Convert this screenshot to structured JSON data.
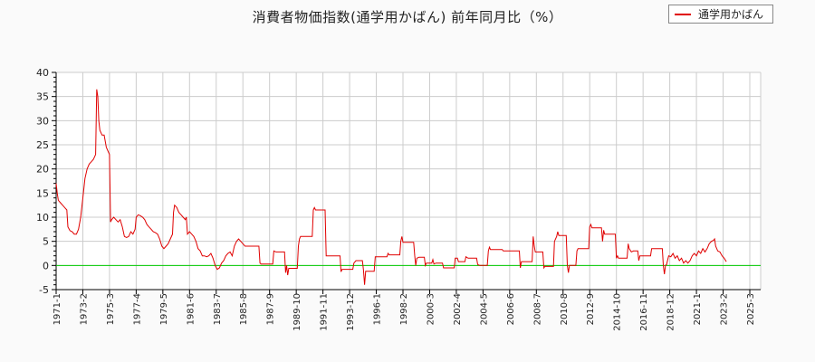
{
  "chart_data": {
    "type": "line",
    "title": "消費者物価指数(通学用かばん) 前年同月比（%）",
    "xlabel": "",
    "ylabel": "",
    "ylim": [
      -5,
      40
    ],
    "yticks": [
      -5,
      0,
      5,
      10,
      15,
      20,
      25,
      30,
      35,
      40
    ],
    "grid": true,
    "legend_position": "top-right",
    "x_tick_labels": [
      "1971-1",
      "1973-2",
      "1975-3",
      "1977-4",
      "1979-5",
      "1981-6",
      "1983-7",
      "1985-8",
      "1987-9",
      "1989-10",
      "1991-11",
      "1993-12",
      "1996-1",
      "1998-2",
      "2000-3",
      "2002-4",
      "2004-5",
      "2006-6",
      "2008-7",
      "2010-8",
      "2012-9",
      "2014-10",
      "2016-11",
      "2018-12",
      "2021-1",
      "2023-2",
      "2025-3"
    ],
    "x_tick_interval_months": 25,
    "x_start": "1971-1",
    "x_end_month_index": 654,
    "reference_line": {
      "y": 0,
      "color": "#00cc00"
    },
    "series": [
      {
        "name": "通学用かばん",
        "color": "#e00000",
        "points_month_index_value": [
          [
            0,
            17
          ],
          [
            1,
            15
          ],
          [
            2,
            13.5
          ],
          [
            4,
            13
          ],
          [
            6,
            12.5
          ],
          [
            8,
            12
          ],
          [
            10,
            11.5
          ],
          [
            11,
            8
          ],
          [
            13,
            7.2
          ],
          [
            15,
            7
          ],
          [
            17,
            6.5
          ],
          [
            19,
            6.5
          ],
          [
            21,
            7.5
          ],
          [
            23,
            10
          ],
          [
            25,
            14
          ],
          [
            27,
            18
          ],
          [
            29,
            20
          ],
          [
            31,
            21
          ],
          [
            33,
            21.5
          ],
          [
            35,
            22
          ],
          [
            37,
            23
          ],
          [
            38,
            36.5
          ],
          [
            39,
            35
          ],
          [
            40,
            30
          ],
          [
            41,
            28
          ],
          [
            43,
            27
          ],
          [
            45,
            27
          ],
          [
            47,
            24.5
          ],
          [
            49,
            23.5
          ],
          [
            50,
            23
          ],
          [
            51,
            9
          ],
          [
            52,
            9.5
          ],
          [
            54,
            10
          ],
          [
            56,
            9.5
          ],
          [
            58,
            9
          ],
          [
            60,
            9.5
          ],
          [
            62,
            8
          ],
          [
            64,
            6
          ],
          [
            66,
            5.8
          ],
          [
            68,
            6
          ],
          [
            70,
            7
          ],
          [
            72,
            6.5
          ],
          [
            74,
            7.5
          ],
          [
            75,
            10
          ],
          [
            77,
            10.5
          ],
          [
            79,
            10.3
          ],
          [
            81,
            10
          ],
          [
            83,
            9.5
          ],
          [
            85,
            8.5
          ],
          [
            87,
            8
          ],
          [
            89,
            7.5
          ],
          [
            91,
            7
          ],
          [
            93,
            6.8
          ],
          [
            95,
            6.5
          ],
          [
            97,
            5.5
          ],
          [
            99,
            4
          ],
          [
            101,
            3.5
          ],
          [
            103,
            4
          ],
          [
            105,
            4.5
          ],
          [
            107,
            5.5
          ],
          [
            109,
            6.5
          ],
          [
            110,
            11
          ],
          [
            111,
            12.5
          ],
          [
            113,
            12
          ],
          [
            115,
            11
          ],
          [
            117,
            10.5
          ],
          [
            119,
            10
          ],
          [
            121,
            9.5
          ],
          [
            122,
            10
          ],
          [
            123,
            6.5
          ],
          [
            125,
            7
          ],
          [
            127,
            6.5
          ],
          [
            129,
            6
          ],
          [
            131,
            5
          ],
          [
            133,
            3.5
          ],
          [
            135,
            3
          ],
          [
            137,
            2
          ],
          [
            139,
            2
          ],
          [
            141,
            1.8
          ],
          [
            143,
            2
          ],
          [
            145,
            2.5
          ],
          [
            147,
            1.5
          ],
          [
            149,
            0
          ],
          [
            151,
            -0.8
          ],
          [
            153,
            -0.5
          ],
          [
            155,
            0.5
          ],
          [
            157,
            1
          ],
          [
            159,
            2
          ],
          [
            161,
            2.5
          ],
          [
            163,
            2.8
          ],
          [
            165,
            2
          ],
          [
            167,
            4
          ],
          [
            169,
            5
          ],
          [
            171,
            5.5
          ],
          [
            173,
            5
          ],
          [
            175,
            4.5
          ],
          [
            177,
            4
          ],
          [
            190,
            4
          ],
          [
            191,
            0.5
          ],
          [
            192,
            0.3
          ],
          [
            203,
            0.3
          ],
          [
            204,
            3
          ],
          [
            206,
            2.8
          ],
          [
            214,
            2.8
          ],
          [
            215,
            -1.5
          ],
          [
            216,
            0
          ],
          [
            217,
            -2
          ],
          [
            218,
            -0.6
          ],
          [
            226,
            -0.6
          ],
          [
            227,
            4
          ],
          [
            228,
            5.5
          ],
          [
            229,
            6
          ],
          [
            240,
            6
          ],
          [
            241,
            11.5
          ],
          [
            242,
            12
          ],
          [
            243,
            11.5
          ],
          [
            252,
            11.5
          ],
          [
            253,
            2
          ],
          [
            266,
            2
          ],
          [
            267,
            -1.3
          ],
          [
            268,
            -0.8
          ],
          [
            278,
            -0.8
          ],
          [
            279,
            0.5
          ],
          [
            281,
            1
          ],
          [
            287,
            1
          ],
          [
            288,
            -1
          ],
          [
            289,
            -4
          ],
          [
            290,
            -1.2
          ],
          [
            298,
            -1.2
          ],
          [
            299,
            1.8
          ],
          [
            300,
            1.8
          ],
          [
            310,
            1.8
          ],
          [
            311,
            2.5
          ],
          [
            312,
            2.2
          ],
          [
            322,
            2.2
          ],
          [
            323,
            5
          ],
          [
            324,
            6
          ],
          [
            325,
            4.8
          ],
          [
            335,
            4.8
          ],
          [
            336,
            2
          ],
          [
            337,
            0
          ],
          [
            338,
            1.5
          ],
          [
            340,
            1.7
          ],
          [
            345,
            1.7
          ],
          [
            346,
            0
          ],
          [
            347,
            0.5
          ],
          [
            352,
            0.5
          ],
          [
            353,
            1.2
          ],
          [
            354,
            0.3
          ],
          [
            356,
            0.5
          ],
          [
            362,
            0.5
          ],
          [
            363,
            -0.5
          ],
          [
            373,
            -0.5
          ],
          [
            374,
            1.5
          ],
          [
            376,
            1.5
          ],
          [
            377,
            0.8
          ],
          [
            383,
            0.8
          ],
          [
            384,
            1.8
          ],
          [
            386,
            1.5
          ],
          [
            394,
            1.5
          ],
          [
            395,
            0.2
          ],
          [
            397,
            0
          ],
          [
            404,
            0
          ],
          [
            405,
            3
          ],
          [
            406,
            3.8
          ],
          [
            407,
            3.3
          ],
          [
            418,
            3.3
          ],
          [
            419,
            3
          ],
          [
            420,
            3
          ],
          [
            434,
            3
          ],
          [
            435,
            -0.5
          ],
          [
            436,
            0.8
          ],
          [
            446,
            0.8
          ],
          [
            447,
            6
          ],
          [
            448,
            4
          ],
          [
            449,
            2.8
          ],
          [
            456,
            2.8
          ],
          [
            457,
            -0.5
          ],
          [
            458,
            -0.2
          ],
          [
            466,
            -0.2
          ],
          [
            467,
            5
          ],
          [
            469,
            6
          ],
          [
            470,
            7
          ],
          [
            471,
            6.2
          ],
          [
            478,
            6.2
          ],
          [
            479,
            0
          ],
          [
            480,
            -1.5
          ],
          [
            481,
            0
          ],
          [
            487,
            0
          ],
          [
            488,
            3
          ],
          [
            489,
            3.5
          ],
          [
            499,
            3.5
          ],
          [
            500,
            8
          ],
          [
            501,
            8.5
          ],
          [
            502,
            7.8
          ],
          [
            511,
            7.8
          ],
          [
            512,
            5
          ],
          [
            513,
            7.3
          ],
          [
            514,
            6.5
          ],
          [
            524,
            6.5
          ],
          [
            525,
            1.5
          ],
          [
            526,
            2
          ],
          [
            527,
            1.5
          ],
          [
            535,
            1.5
          ],
          [
            536,
            4.5
          ],
          [
            537,
            3.5
          ],
          [
            539,
            2.8
          ],
          [
            541,
            3
          ],
          [
            545,
            3
          ],
          [
            546,
            1
          ],
          [
            547,
            2
          ],
          [
            557,
            2
          ],
          [
            558,
            3.5
          ],
          [
            568,
            3.5
          ],
          [
            569,
            0
          ],
          [
            570,
            -1.8
          ],
          [
            571,
            0
          ],
          [
            572,
            0.2
          ],
          [
            574,
            2
          ],
          [
            576,
            1.8
          ],
          [
            578,
            2.5
          ],
          [
            580,
            1.5
          ],
          [
            582,
            2
          ],
          [
            584,
            1
          ],
          [
            586,
            1.5
          ],
          [
            588,
            0.5
          ],
          [
            590,
            1
          ],
          [
            592,
            0.5
          ],
          [
            594,
            1
          ],
          [
            596,
            2
          ],
          [
            598,
            2.5
          ],
          [
            600,
            2
          ],
          [
            602,
            3
          ],
          [
            604,
            2.5
          ],
          [
            606,
            3.5
          ],
          [
            608,
            2.8
          ],
          [
            610,
            3.5
          ],
          [
            612,
            4.5
          ],
          [
            614,
            5
          ],
          [
            616,
            5.2
          ],
          [
            617,
            5.5
          ],
          [
            618,
            4
          ],
          [
            620,
            3
          ],
          [
            622,
            2.8
          ],
          [
            624,
            2
          ],
          [
            626,
            1.5
          ],
          [
            628,
            0.8
          ]
        ]
      }
    ]
  },
  "title": "消費者物価指数(通学用かばん) 前年同月比（%）",
  "legend": {
    "label": "通学用かばん",
    "color": "#e00000"
  }
}
